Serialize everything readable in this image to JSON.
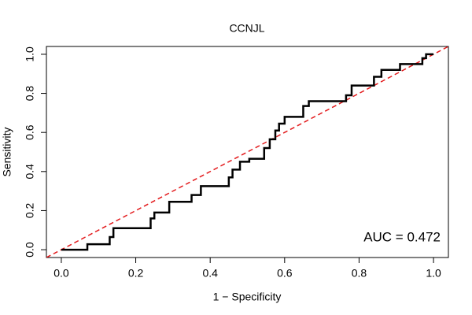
{
  "chart_data": {
    "type": "line",
    "title": "CCNJL",
    "x_label": "1 − Specificity",
    "y_label": "Sensitivity",
    "annotation": "AUC = 0.472",
    "xlim": [
      -0.04,
      1.04
    ],
    "ylim": [
      -0.04,
      1.04
    ],
    "xticks": [
      {
        "value": 0,
        "label": "0.0"
      },
      0.2,
      0.4,
      0.6,
      0.8,
      {
        "value": 1,
        "label": "1.0"
      }
    ],
    "yticks": [
      {
        "value": 0,
        "label": "0.0"
      },
      0.2,
      0.4,
      0.6,
      0.8,
      {
        "value": 1,
        "label": "1.0"
      }
    ],
    "grid": false,
    "x": [
      0,
      0.07,
      0.07,
      0.13,
      0.13,
      0.14,
      0.14,
      0.24,
      0.24,
      0.25,
      0.25,
      0.29,
      0.29,
      0.35,
      0.35,
      0.375,
      0.375,
      0.45,
      0.45,
      0.46,
      0.46,
      0.48,
      0.48,
      0.505,
      0.505,
      0.545,
      0.545,
      0.56,
      0.56,
      0.575,
      0.575,
      0.585,
      0.585,
      0.6,
      0.6,
      0.65,
      0.65,
      0.665,
      0.665,
      0.765,
      0.765,
      0.78,
      0.78,
      0.84,
      0.84,
      0.86,
      0.86,
      0.91,
      0.91,
      0.97,
      0.97,
      0.98,
      0.98,
      1
    ],
    "series": [
      {
        "color": "#000000",
        "values": [
          0,
          0,
          0.028,
          0.028,
          0.065,
          0.065,
          0.11,
          0.11,
          0.16,
          0.16,
          0.19,
          0.19,
          0.245,
          0.245,
          0.28,
          0.28,
          0.325,
          0.325,
          0.37,
          0.37,
          0.41,
          0.41,
          0.45,
          0.45,
          0.465,
          0.465,
          0.52,
          0.52,
          0.565,
          0.565,
          0.61,
          0.61,
          0.645,
          0.645,
          0.68,
          0.68,
          0.735,
          0.735,
          0.76,
          0.76,
          0.79,
          0.79,
          0.84,
          0.84,
          0.885,
          0.885,
          0.92,
          0.92,
          0.95,
          0.95,
          0.98,
          0.98,
          1,
          1
        ]
      }
    ]
  }
}
